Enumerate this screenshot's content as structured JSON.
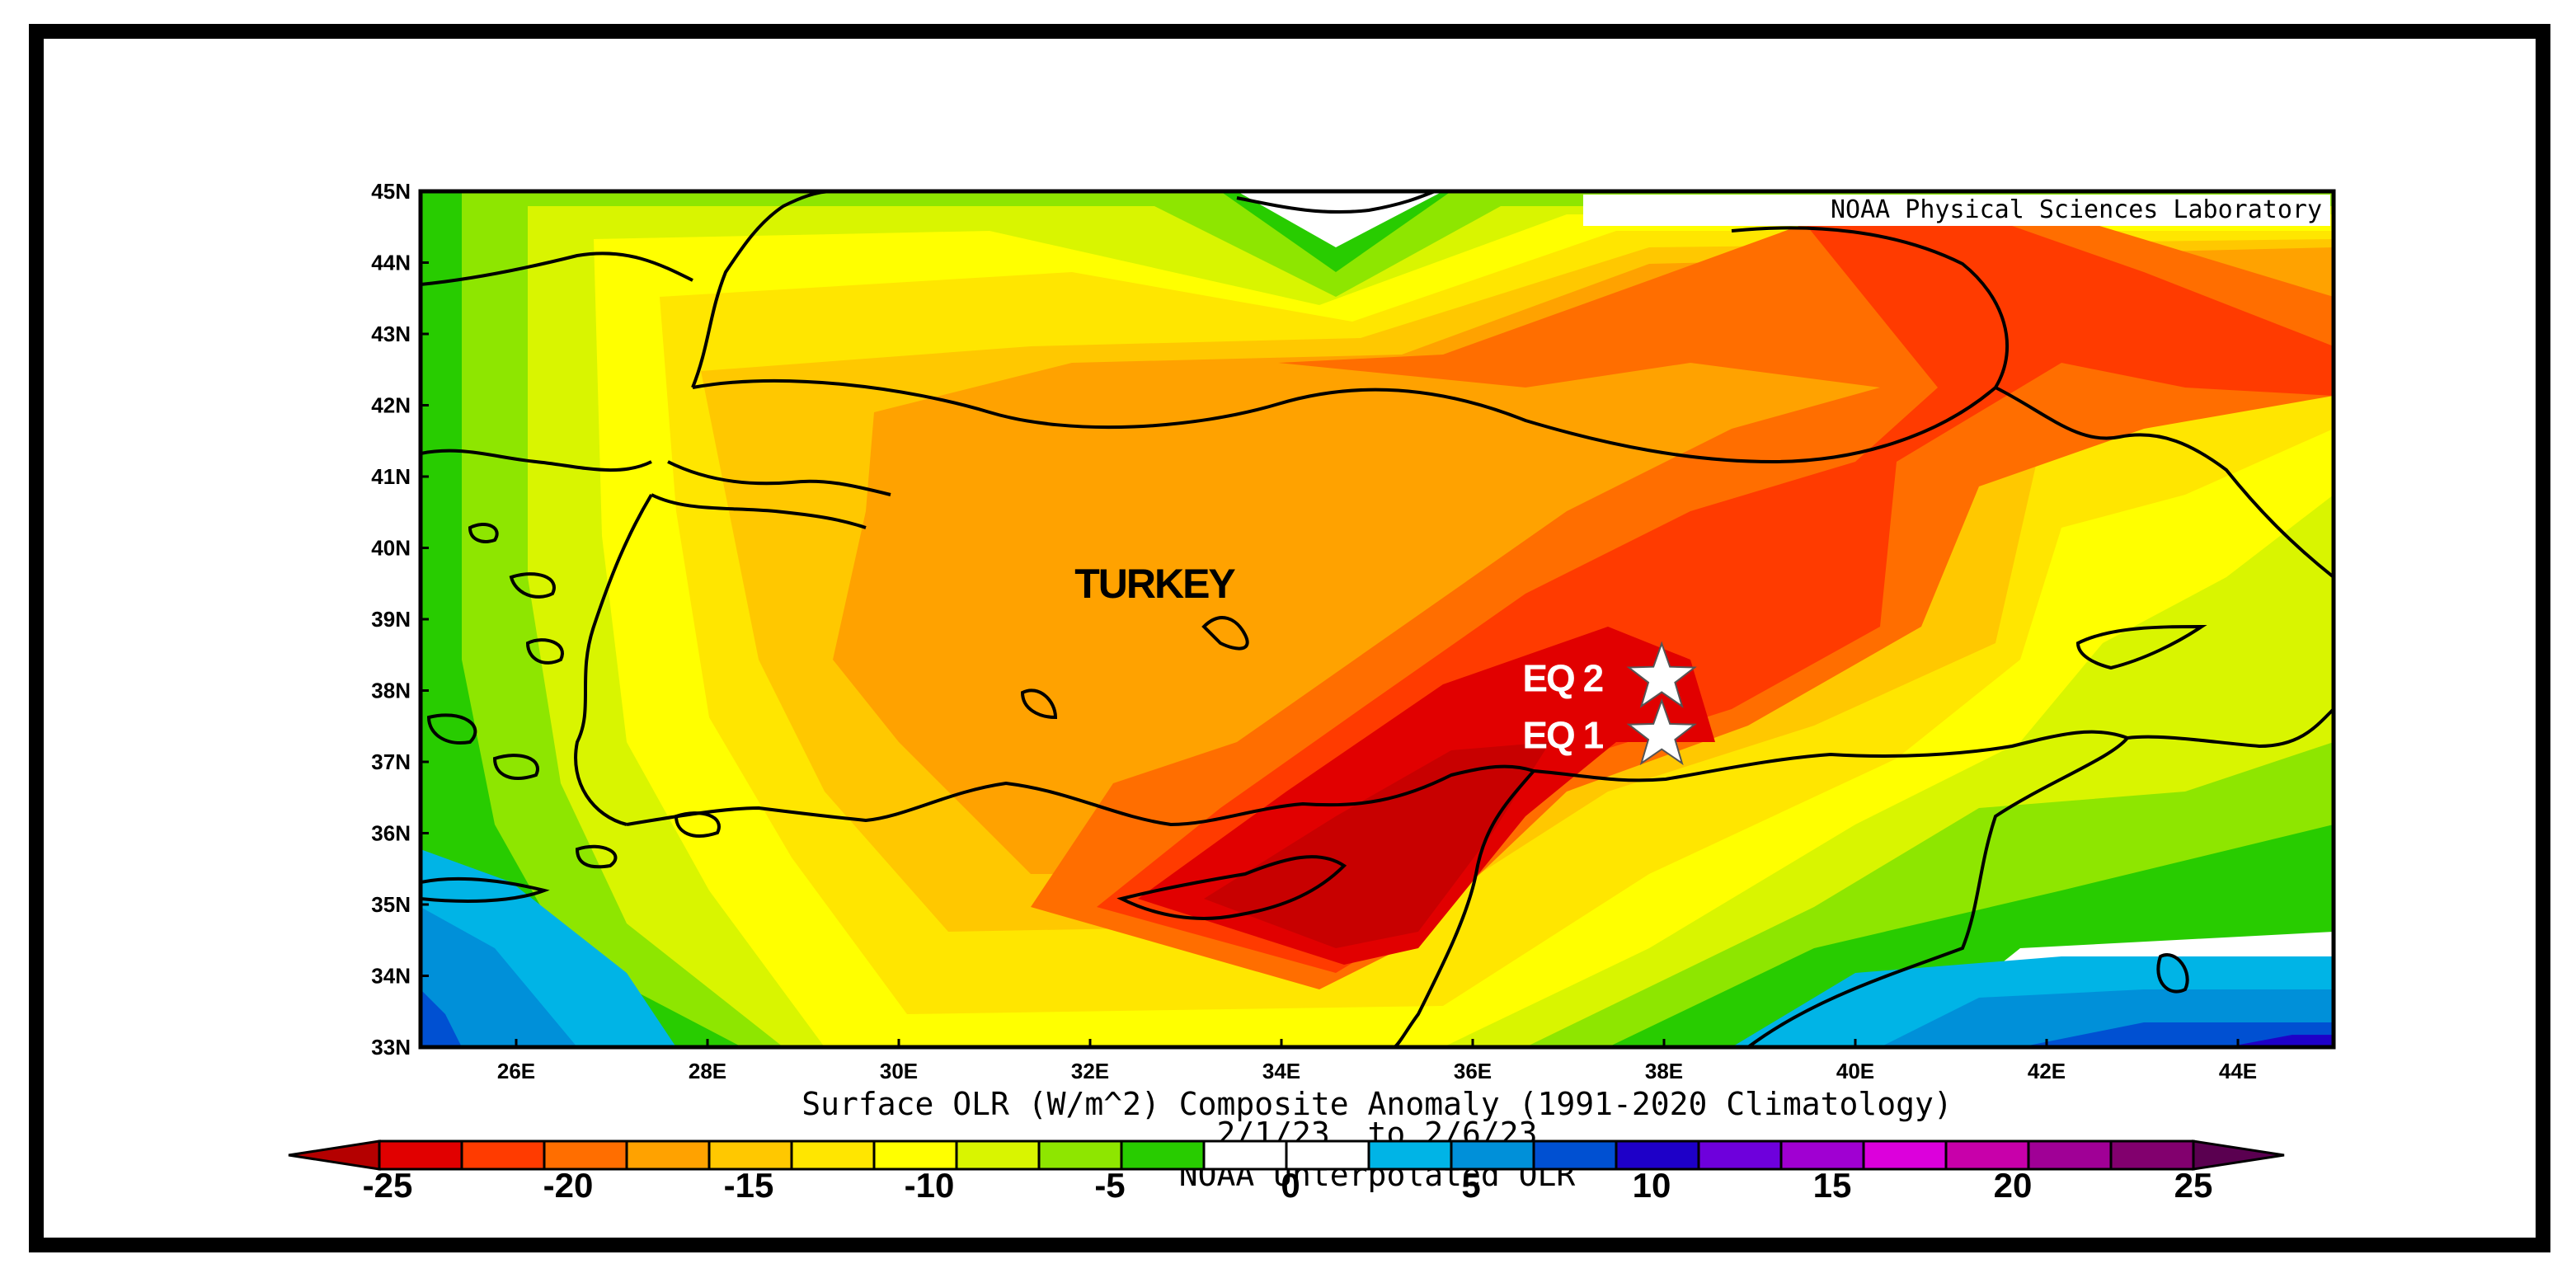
{
  "credit": "NOAA Physical Sciences Laboratory",
  "map_label": "TURKEY",
  "markers": [
    {
      "label": "EQ 2",
      "lon": 37.7,
      "lat": 38.0
    },
    {
      "label": "EQ 1",
      "lon": 37.7,
      "lat": 37.2
    }
  ],
  "lat_ticks": [
    "45N",
    "44N",
    "43N",
    "42N",
    "41N",
    "40N",
    "39N",
    "38N",
    "37N",
    "36N",
    "35N",
    "34N",
    "33N"
  ],
  "lon_ticks": [
    "26E",
    "28E",
    "30E",
    "32E",
    "34E",
    "36E",
    "38E",
    "40E",
    "42E",
    "44E"
  ],
  "caption": {
    "line1": "Surface OLR (W/m^2) Composite Anomaly (1991-2020 Climatology)",
    "line2": "2/1/23  to 2/6/23",
    "line3": "NOAA Unterpolated OLR"
  },
  "colorbar": {
    "labels": [
      "-25",
      "-20",
      "-15",
      "-10",
      "-5",
      "0",
      "5",
      "10",
      "15",
      "20",
      "25"
    ],
    "colors": [
      "#e10000",
      "#ff3b00",
      "#ff6e00",
      "#ffa200",
      "#ffc800",
      "#ffe600",
      "#ffff00",
      "#d9f500",
      "#8ee600",
      "#28cc00",
      "#ffffff",
      "#ffffff",
      "#00b4e6",
      "#0090d9",
      "#0050d2",
      "#1e00c8",
      "#6e00dc",
      "#a000d2",
      "#dc00dc",
      "#c800aa",
      "#a00096",
      "#82006e"
    ],
    "end_low": "#b40000",
    "end_high": "#5a0050"
  },
  "chart_data": {
    "type": "heatmap",
    "title": "Surface OLR (W/m^2) Composite Anomaly (1991-2020 Climatology)",
    "subtitle": "2/1/23  to 2/6/23",
    "lon_range": [
      25,
      45
    ],
    "lat_range": [
      33,
      45
    ],
    "value_range": [
      -25,
      25
    ],
    "color_levels": [
      -25,
      -22.5,
      -20,
      -17.5,
      -15,
      -12.5,
      -10,
      -7.5,
      -5,
      -2.5,
      0,
      2.5,
      5,
      7.5,
      10,
      12.5,
      15,
      17.5,
      20,
      22.5,
      25
    ],
    "min_anomaly_region": {
      "lon": 35.5,
      "lat": 35.5,
      "value": -25
    },
    "markers": [
      {
        "label": "EQ 2",
        "lon": 37.7,
        "lat": 38.0
      },
      {
        "label": "EQ 1",
        "lon": 37.7,
        "lat": 37.2
      }
    ]
  }
}
